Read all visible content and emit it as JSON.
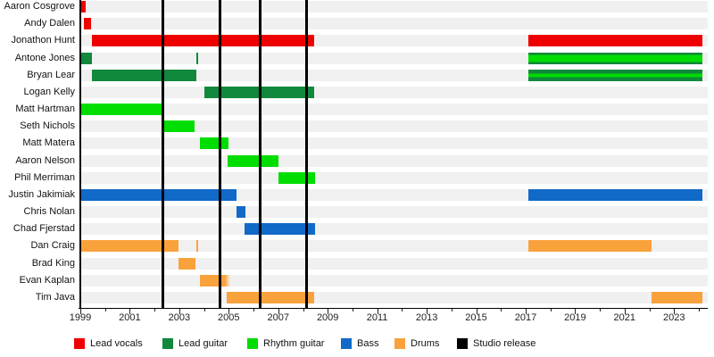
{
  "chart_data": {
    "type": "timeline-gantt",
    "description": "Band members timeline chart (Gantt-style) with roles as colored bars and studio releases as vertical black lines",
    "x_axis": {
      "start": 1999,
      "end": 2024.3,
      "labeled_ticks": [
        1999,
        2001,
        2003,
        2005,
        2007,
        2009,
        2011,
        2013,
        2015,
        2017,
        2019,
        2021,
        2023
      ],
      "minor_tick_every_years": 1
    },
    "colors": {
      "lead_vocals": "#ee0000",
      "lead_guitar": "#11883c",
      "rhythm_guitar": "#00dd00",
      "bass": "#1169c8",
      "drums": "#f9a23c",
      "studio_release": "#000000",
      "row_track": "#f0f0f0"
    },
    "legend": [
      {
        "key": "lead_vocals",
        "label": "Lead vocals"
      },
      {
        "key": "lead_guitar",
        "label": "Lead guitar"
      },
      {
        "key": "rhythm_guitar",
        "label": "Rhythm guitar"
      },
      {
        "key": "bass",
        "label": "Bass"
      },
      {
        "key": "drums",
        "label": "Drums"
      },
      {
        "key": "studio_release",
        "label": "Studio release"
      }
    ],
    "studio_releases": [
      2002.35,
      2004.65,
      2006.25,
      2008.15
    ],
    "members": [
      {
        "name": "Aaron Cosgrove",
        "bars": [
          {
            "role": "lead_vocals",
            "start": 1999.05,
            "end": 1999.2
          }
        ]
      },
      {
        "name": "Andy Dalen",
        "bars": [
          {
            "role": "lead_vocals",
            "start": 1999.15,
            "end": 1999.45
          }
        ]
      },
      {
        "name": "Jonathon Hunt",
        "bars": [
          {
            "role": "lead_vocals",
            "start": 1999.45,
            "end": 2008.45
          },
          {
            "role": "lead_vocals",
            "start": 2017.1,
            "end": 2024.15
          }
        ]
      },
      {
        "name": "Antone Jones",
        "bars": [
          {
            "role": "lead_guitar",
            "start": 1999.0,
            "end": 1999.45
          },
          {
            "role": "lead_guitar",
            "start": 2003.68,
            "end": 2003.78
          },
          {
            "role": "lead_guitar",
            "start": 2017.1,
            "end": 2024.15,
            "stripe_role": "rhythm_guitar",
            "stripe_from": 0.2,
            "stripe_to": 0.8
          }
        ]
      },
      {
        "name": "Bryan Lear",
        "bars": [
          {
            "role": "lead_guitar",
            "start": 1999.45,
            "end": 2003.7
          },
          {
            "role": "lead_guitar",
            "start": 2017.1,
            "end": 2024.15,
            "stripe_role": "rhythm_guitar",
            "stripe_from": 0.35,
            "stripe_to": 0.65
          }
        ]
      },
      {
        "name": "Logan Kelly",
        "bars": [
          {
            "role": "lead_guitar",
            "start": 2004.0,
            "end": 2008.45
          }
        ]
      },
      {
        "name": "Matt Hartman",
        "bars": [
          {
            "role": "rhythm_guitar",
            "start": 1999.0,
            "end": 2002.35
          }
        ]
      },
      {
        "name": "Seth Nichols",
        "bars": [
          {
            "role": "rhythm_guitar",
            "start": 2002.35,
            "end": 2003.6
          }
        ]
      },
      {
        "name": "Matt Matera",
        "bars": [
          {
            "role": "rhythm_guitar",
            "start": 2003.85,
            "end": 2005.0
          }
        ]
      },
      {
        "name": "Aaron Nelson",
        "bars": [
          {
            "role": "rhythm_guitar",
            "start": 2004.95,
            "end": 2007.0
          }
        ]
      },
      {
        "name": "Phil Merriman",
        "bars": [
          {
            "role": "rhythm_guitar",
            "start": 2007.0,
            "end": 2008.5
          }
        ]
      },
      {
        "name": "Justin Jakimiak",
        "bars": [
          {
            "role": "bass",
            "start": 1999.0,
            "end": 2005.3
          },
          {
            "role": "bass",
            "start": 2017.1,
            "end": 2024.15
          }
        ]
      },
      {
        "name": "Chris Nolan",
        "bars": [
          {
            "role": "bass",
            "start": 2005.3,
            "end": 2005.68
          }
        ]
      },
      {
        "name": "Chad Fjerstad",
        "bars": [
          {
            "role": "bass",
            "start": 2005.62,
            "end": 2008.5
          }
        ]
      },
      {
        "name": "Dan Craig",
        "bars": [
          {
            "role": "drums",
            "start": 1999.0,
            "end": 2002.95
          },
          {
            "role": "drums",
            "start": 2003.68,
            "end": 2003.78
          },
          {
            "role": "drums",
            "start": 2017.1,
            "end": 2022.1
          }
        ]
      },
      {
        "name": "Brad King",
        "bars": [
          {
            "role": "drums",
            "start": 2002.95,
            "end": 2003.65
          }
        ]
      },
      {
        "name": "Evan Kaplan",
        "bars": [
          {
            "role": "drums",
            "start": 2003.85,
            "end": 2005.05,
            "fade_right": true
          }
        ]
      },
      {
        "name": "Tim Java",
        "bars": [
          {
            "role": "drums",
            "start": 2004.9,
            "end": 2008.45
          },
          {
            "role": "drums",
            "start": 2022.1,
            "end": 2024.15
          }
        ]
      }
    ]
  }
}
